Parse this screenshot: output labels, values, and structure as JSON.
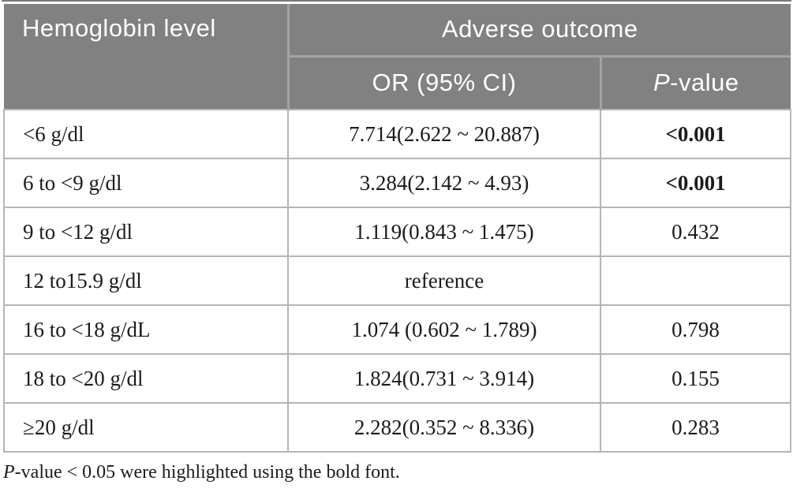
{
  "table": {
    "header": {
      "col1": "Hemoglobin level",
      "group": "Adverse outcome",
      "or_label": "OR (95% CI)",
      "p_label_italic": "P",
      "p_label_rest": "-value"
    },
    "rows": [
      {
        "level": "<6 g/dl",
        "or": "7.714(2.622 ~ 20.887)",
        "p": "<0.001"
      },
      {
        "level": "6 to <9 g/dl",
        "or": "3.284(2.142 ~ 4.93)",
        "p": "<0.001"
      },
      {
        "level": "9 to <12 g/dl",
        "or": "1.119(0.843 ~ 1.475)",
        "p": "0.432"
      },
      {
        "level": "12 to15.9 g/dl",
        "or": "reference",
        "p": ""
      },
      {
        "level": "16 to <18 g/dL",
        "or": "1.074 (0.602 ~ 1.789)",
        "p": "0.798"
      },
      {
        "level": "18 to <20 g/dl",
        "or": "1.824(0.731 ~ 3.914)",
        "p": "0.155"
      },
      {
        "level": "≥20 g/dl",
        "or": "2.282(0.352 ~ 8.336)",
        "p": "0.283"
      }
    ]
  },
  "footnote": {
    "p_italic": "P",
    "rest": "-value < 0.05 were highlighted using the bold font."
  },
  "colors": {
    "header_bg": "#818181",
    "header_text": "#ffffff",
    "header_divider": "#a3a3a3",
    "body_border": "#b5b5b5",
    "body_text": "#1b1b1b",
    "top_rule": "#7a7a7a"
  }
}
